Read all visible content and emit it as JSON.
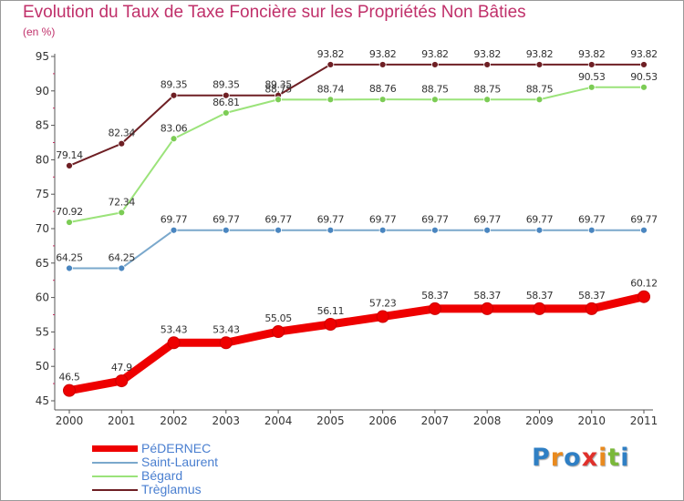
{
  "title": "Evolution du Taux de Taxe Foncière sur les Propriétés Non Bâties",
  "subtitle": "(en %)",
  "logo": {
    "text": "Proxiti",
    "letters": [
      {
        "char": "P",
        "color": "#2f7fc4"
      },
      {
        "char": "r",
        "color": "#e98a1e"
      },
      {
        "char": "o",
        "color": "#2f7fc4"
      },
      {
        "char": "x",
        "color": "#e0302b"
      },
      {
        "char": "i",
        "color": "#e98a1e"
      },
      {
        "char": "t",
        "color": "#7ab83a"
      },
      {
        "char": "i",
        "color": "#2f7fc4"
      }
    ]
  },
  "chart_data": {
    "type": "line",
    "title": "Evolution du Taux de Taxe Foncière sur les Propriétés Non Bâties",
    "ylabel": "(en %)",
    "xlabel": "",
    "ylim": [
      45,
      95
    ],
    "yticks": [
      45,
      50,
      55,
      60,
      65,
      70,
      75,
      80,
      85,
      90,
      95
    ],
    "grid": false,
    "legend": "bottom-left",
    "categories": [
      "2000",
      "2001",
      "2002",
      "2003",
      "2004",
      "2005",
      "2006",
      "2007",
      "2008",
      "2009",
      "2010",
      "2011"
    ],
    "series": [
      {
        "name": "Trèglamus",
        "color": "#6e1f24",
        "values": [
          79.14,
          82.34,
          89.35,
          89.35,
          89.35,
          93.82,
          93.82,
          93.82,
          93.82,
          93.82,
          93.82,
          93.82
        ],
        "labels": [
          "79.14",
          "82.34",
          "89.35",
          "89.35",
          "89.35",
          "93.82",
          "93.82",
          "93.82",
          "93.82",
          "93.82",
          "93.82",
          "93.82"
        ]
      },
      {
        "name": "Bégard",
        "color": "#9be37a",
        "marker": "#7ccc55",
        "values": [
          70.92,
          72.34,
          83.06,
          86.81,
          88.75,
          88.74,
          88.76,
          88.75,
          88.75,
          88.75,
          90.53,
          90.53
        ],
        "labels": [
          "70.92",
          "72.34",
          "83.06",
          "86.81",
          "88.75",
          "88.74",
          "88.76",
          "88.75",
          "88.75",
          "88.75",
          "90.53",
          "90.53"
        ]
      },
      {
        "name": "Saint-Laurent",
        "color": "#7aa8cc",
        "marker": "#4a86c0",
        "values": [
          64.25,
          64.25,
          69.77,
          69.77,
          69.77,
          69.77,
          69.77,
          69.77,
          69.77,
          69.77,
          69.77,
          69.77
        ],
        "labels": [
          "64.25",
          "64.25",
          "69.77",
          "69.77",
          "69.77",
          "69.77",
          "69.77",
          "69.77",
          "69.77",
          "69.77",
          "69.77",
          "69.77"
        ]
      },
      {
        "name": "PéDERNEC",
        "color": "#ee0000",
        "values": [
          46.5,
          47.9,
          53.43,
          53.43,
          55.05,
          56.11,
          57.23,
          58.37,
          58.37,
          58.37,
          58.37,
          60.12
        ],
        "labels": [
          "46.5",
          "47.9",
          "53.43",
          "53.43",
          "55.05",
          "56.11",
          "57.23",
          "58.37",
          "58.37",
          "58.37",
          "58.37",
          "60.12"
        ]
      }
    ]
  },
  "legend_items": [
    {
      "label": "PéDERNEC",
      "color": "#ee0000",
      "text_color": "#4a7fd0"
    },
    {
      "label": "Saint-Laurent",
      "color": "#7aa8cc",
      "text_color": "#4a7fd0"
    },
    {
      "label": "Bégard",
      "color": "#9be37a",
      "text_color": "#4a7fd0"
    },
    {
      "label": "Trèglamus",
      "color": "#6e1f24",
      "text_color": "#4a7fd0"
    }
  ]
}
